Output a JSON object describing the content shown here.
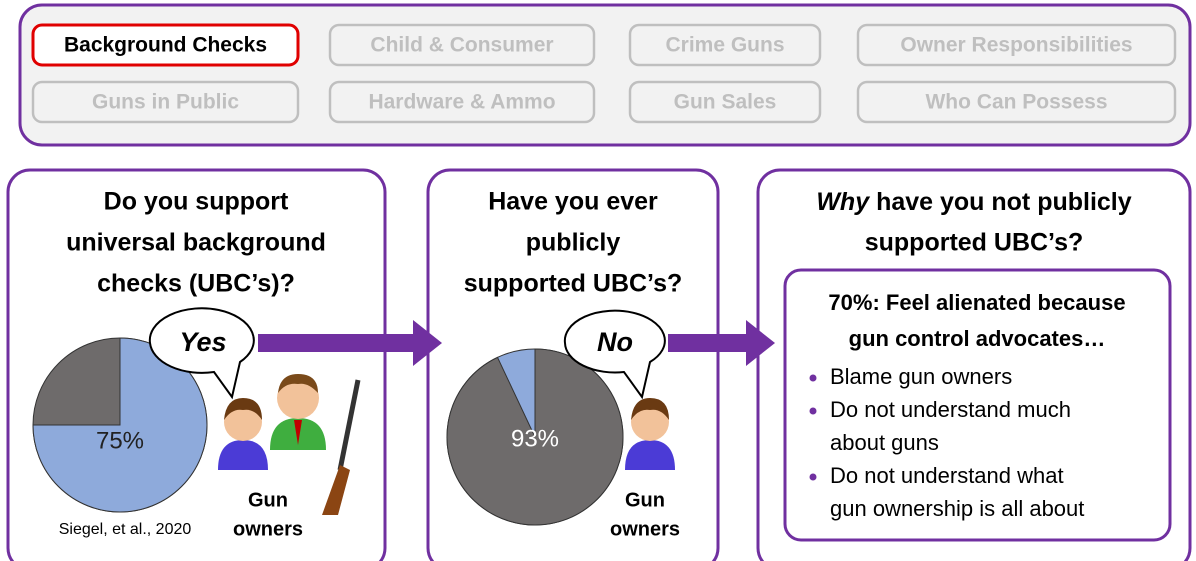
{
  "tabs": {
    "rows": [
      [
        {
          "label": "Background Checks",
          "active": true
        },
        {
          "label": "Child & Consumer",
          "active": false
        },
        {
          "label": "Crime Guns",
          "active": false
        },
        {
          "label": "Owner Responsibilities",
          "active": false
        }
      ],
      [
        {
          "label": "Guns in Public",
          "active": false
        },
        {
          "label": "Hardware & Ammo",
          "active": false
        },
        {
          "label": "Gun Sales",
          "active": false
        },
        {
          "label": "Who Can Possess",
          "active": false
        }
      ]
    ]
  },
  "panels": [
    {
      "title_lines": [
        "Do you support",
        "universal background",
        "checks (UBC’s)?"
      ],
      "pie": {
        "values": [
          75
        ],
        "value_labels": [
          "75%"
        ]
      },
      "bubble": "Yes",
      "caption_lines": [
        "Gun",
        "owners"
      ],
      "source": "Siegel, et al., 2020"
    },
    {
      "title_lines": [
        "Have you ever",
        "publicly",
        "supported UBC’s?"
      ],
      "pie": {
        "values": [
          93
        ],
        "value_labels": [
          "93%"
        ]
      },
      "bubble": "No",
      "caption_lines": [
        "Gun",
        "owners"
      ]
    },
    {
      "title": {
        "emphasis": "Why",
        "line1": "have you not publicly",
        "line2": "supported UBC’s?"
      },
      "box": {
        "heading_lines": [
          "70%: Feel alienated because",
          "gun control advocates…"
        ],
        "bullets": [
          [
            "Blame gun owners"
          ],
          [
            "Do not understand much",
            "about guns"
          ],
          [
            "Do not understand what",
            "gun ownership is all about"
          ]
        ]
      }
    }
  ]
}
